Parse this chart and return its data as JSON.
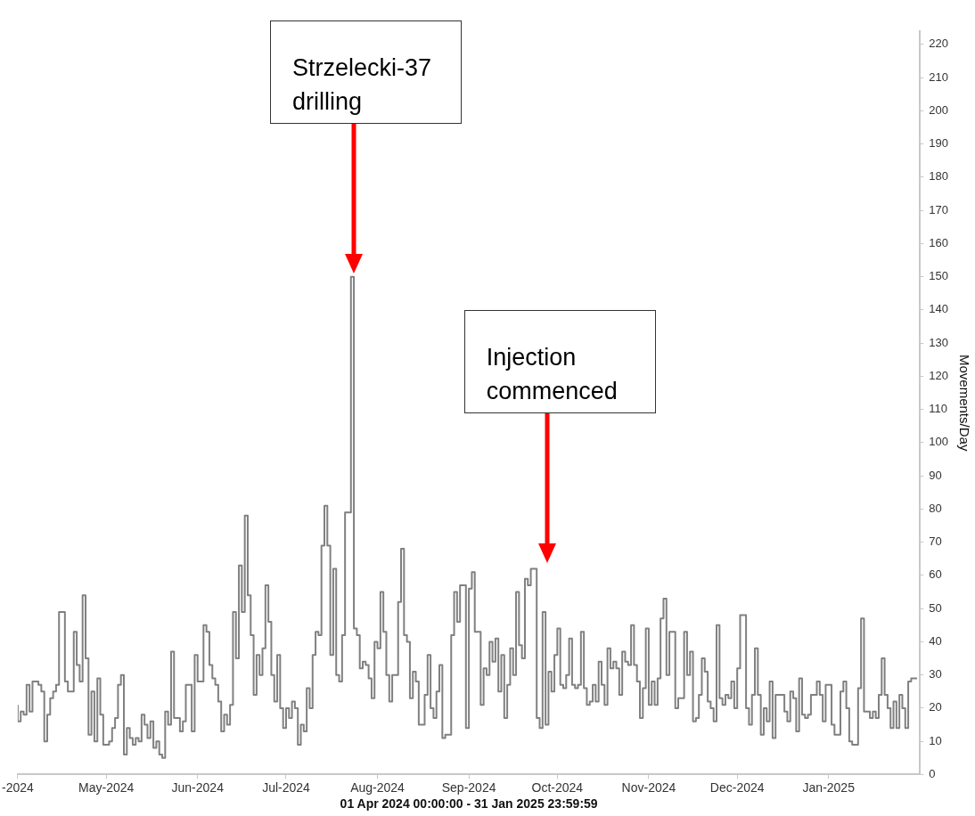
{
  "chart_data": {
    "type": "step",
    "xlabel": "01 Apr 2024 00:00:00 - 31 Jan 2025 23:59:59",
    "ylabel": "Movements/Day",
    "color": "#808080",
    "x": [
      "2024-04-01",
      "2024-04-02",
      "2024-04-03",
      "2024-04-04",
      "2024-04-05",
      "2024-04-06",
      "2024-04-07",
      "2024-04-08",
      "2024-04-09",
      "2024-04-10",
      "2024-04-11",
      "2024-04-12",
      "2024-04-13",
      "2024-04-14",
      "2024-04-15",
      "2024-04-16",
      "2024-04-17",
      "2024-04-18",
      "2024-04-19",
      "2024-04-20",
      "2024-04-21",
      "2024-04-22",
      "2024-04-23",
      "2024-04-24",
      "2024-04-25",
      "2024-04-26",
      "2024-04-27",
      "2024-04-28",
      "2024-04-29",
      "2024-04-30",
      "2024-05-01",
      "2024-05-02",
      "2024-05-03",
      "2024-05-04",
      "2024-05-05",
      "2024-05-06",
      "2024-05-07",
      "2024-05-08",
      "2024-05-09",
      "2024-05-10",
      "2024-05-11",
      "2024-05-12",
      "2024-05-13",
      "2024-05-14",
      "2024-05-15",
      "2024-05-16",
      "2024-05-17",
      "2024-05-18",
      "2024-05-19",
      "2024-05-20",
      "2024-05-21",
      "2024-05-22",
      "2024-05-23",
      "2024-05-24",
      "2024-05-25",
      "2024-05-26",
      "2024-05-27",
      "2024-05-28",
      "2024-05-29",
      "2024-05-30",
      "2024-05-31",
      "2024-06-01",
      "2024-06-02",
      "2024-06-03",
      "2024-06-04",
      "2024-06-05",
      "2024-06-06",
      "2024-06-07",
      "2024-06-08",
      "2024-06-09",
      "2024-06-10",
      "2024-06-11",
      "2024-06-12",
      "2024-06-13",
      "2024-06-14",
      "2024-06-15",
      "2024-06-16",
      "2024-06-17",
      "2024-06-18",
      "2024-06-19",
      "2024-06-20",
      "2024-06-21",
      "2024-06-22",
      "2024-06-23",
      "2024-06-24",
      "2024-06-25",
      "2024-06-26",
      "2024-06-27",
      "2024-06-28",
      "2024-06-29",
      "2024-06-30",
      "2024-07-01",
      "2024-07-02",
      "2024-07-03",
      "2024-07-04",
      "2024-07-05",
      "2024-07-06",
      "2024-07-07",
      "2024-07-08",
      "2024-07-09",
      "2024-07-10",
      "2024-07-11",
      "2024-07-12",
      "2024-07-13",
      "2024-07-14",
      "2024-07-15",
      "2024-07-16",
      "2024-07-17",
      "2024-07-18",
      "2024-07-19",
      "2024-07-20",
      "2024-07-21",
      "2024-07-22",
      "2024-07-23",
      "2024-07-24",
      "2024-07-25",
      "2024-07-26",
      "2024-07-27",
      "2024-07-28",
      "2024-07-29",
      "2024-07-30",
      "2024-07-31",
      "2024-08-01",
      "2024-08-02",
      "2024-08-03",
      "2024-08-04",
      "2024-08-05",
      "2024-08-06",
      "2024-08-07",
      "2024-08-08",
      "2024-08-09",
      "2024-08-10",
      "2024-08-11",
      "2024-08-12",
      "2024-08-13",
      "2024-08-14",
      "2024-08-15",
      "2024-08-16",
      "2024-08-17",
      "2024-08-18",
      "2024-08-19",
      "2024-08-20",
      "2024-08-21",
      "2024-08-22",
      "2024-08-23",
      "2024-08-24",
      "2024-08-25",
      "2024-08-26",
      "2024-08-27",
      "2024-08-28",
      "2024-08-29",
      "2024-08-30",
      "2024-08-31",
      "2024-09-01",
      "2024-09-02",
      "2024-09-03",
      "2024-09-04",
      "2024-09-05",
      "2024-09-06",
      "2024-09-07",
      "2024-09-08",
      "2024-09-09",
      "2024-09-10",
      "2024-09-11",
      "2024-09-12",
      "2024-09-13",
      "2024-09-14",
      "2024-09-15",
      "2024-09-16",
      "2024-09-17",
      "2024-09-18",
      "2024-09-19",
      "2024-09-20",
      "2024-09-21",
      "2024-09-22",
      "2024-09-23",
      "2024-09-24",
      "2024-09-25",
      "2024-09-26",
      "2024-09-27",
      "2024-09-28",
      "2024-09-29",
      "2024-09-30",
      "2024-10-01",
      "2024-10-02",
      "2024-10-03",
      "2024-10-04",
      "2024-10-05",
      "2024-10-06",
      "2024-10-07",
      "2024-10-08",
      "2024-10-09",
      "2024-10-10",
      "2024-10-11",
      "2024-10-12",
      "2024-10-13",
      "2024-10-14",
      "2024-10-15",
      "2024-10-16",
      "2024-10-17",
      "2024-10-18",
      "2024-10-19",
      "2024-10-20",
      "2024-10-21",
      "2024-10-22",
      "2024-10-23",
      "2024-10-24",
      "2024-10-25",
      "2024-10-26",
      "2024-10-27",
      "2024-10-28",
      "2024-10-29",
      "2024-10-30",
      "2024-10-31",
      "2024-11-01",
      "2024-11-02",
      "2024-11-03",
      "2024-11-04",
      "2024-11-05",
      "2024-11-06",
      "2024-11-07",
      "2024-11-08",
      "2024-11-09",
      "2024-11-10",
      "2024-11-11",
      "2024-11-12",
      "2024-11-13",
      "2024-11-14",
      "2024-11-15",
      "2024-11-16",
      "2024-11-17",
      "2024-11-18",
      "2024-11-19",
      "2024-11-20",
      "2024-11-21",
      "2024-11-22",
      "2024-11-23",
      "2024-11-24",
      "2024-11-25",
      "2024-11-26",
      "2024-11-27",
      "2024-11-28",
      "2024-11-29",
      "2024-11-30",
      "2024-12-01",
      "2024-12-02",
      "2024-12-03",
      "2024-12-04",
      "2024-12-05",
      "2024-12-06",
      "2024-12-07",
      "2024-12-08",
      "2024-12-09",
      "2024-12-10",
      "2024-12-11",
      "2024-12-12",
      "2024-12-13",
      "2024-12-14",
      "2024-12-15",
      "2024-12-16",
      "2024-12-17",
      "2024-12-18",
      "2024-12-19",
      "2024-12-20",
      "2024-12-21",
      "2024-12-22",
      "2024-12-23",
      "2024-12-24",
      "2024-12-25",
      "2024-12-26",
      "2024-12-27",
      "2024-12-28",
      "2024-12-29",
      "2024-12-30",
      "2024-12-31",
      "2025-01-01",
      "2025-01-02",
      "2025-01-03",
      "2025-01-04",
      "2025-01-05",
      "2025-01-06",
      "2025-01-07",
      "2025-01-08",
      "2025-01-09",
      "2025-01-10",
      "2025-01-11",
      "2025-01-12",
      "2025-01-13",
      "2025-01-14",
      "2025-01-15",
      "2025-01-16",
      "2025-01-17",
      "2025-01-18",
      "2025-01-19",
      "2025-01-20",
      "2025-01-21",
      "2025-01-22",
      "2025-01-23",
      "2025-01-24",
      "2025-01-25",
      "2025-01-26",
      "2025-01-27",
      "2025-01-28",
      "2025-01-29",
      "2025-01-30",
      "2025-01-31"
    ],
    "values": [
      21,
      16,
      19,
      18,
      27,
      19,
      28,
      28,
      27,
      25,
      10,
      18,
      23,
      25,
      27,
      49,
      49,
      28,
      25,
      25,
      43,
      33,
      28,
      54,
      35,
      12,
      25,
      10,
      29,
      18,
      9,
      9,
      10,
      14,
      17,
      27,
      30,
      6,
      14,
      11,
      9,
      11,
      10,
      18,
      15,
      11,
      16,
      8,
      10,
      6,
      5,
      19,
      15,
      37,
      17,
      17,
      13,
      16,
      27,
      27,
      13,
      36,
      28,
      28,
      45,
      43,
      33,
      29,
      27,
      22,
      13,
      18,
      15,
      21,
      49,
      35,
      63,
      49,
      78,
      54,
      42,
      24,
      36,
      30,
      38,
      57,
      46,
      30,
      22,
      36,
      20,
      14,
      20,
      17,
      22,
      20,
      9,
      15,
      13,
      26,
      20,
      36,
      43,
      42,
      69,
      81,
      69,
      36,
      62,
      30,
      28,
      42,
      79,
      79,
      150,
      44,
      42,
      32,
      34,
      33,
      29,
      23,
      40,
      38,
      55,
      43,
      30,
      22,
      30,
      30,
      52,
      68,
      42,
      40,
      23,
      31,
      28,
      15,
      15,
      24,
      36,
      20,
      17,
      25,
      33,
      11,
      12,
      12,
      42,
      55,
      46,
      57,
      57,
      14,
      56,
      61,
      43,
      43,
      21,
      32,
      30,
      40,
      34,
      41,
      25,
      36,
      17,
      27,
      38,
      30,
      55,
      39,
      35,
      59,
      57,
      62,
      62,
      17,
      14,
      49,
      15,
      31,
      25,
      36,
      44,
      27,
      26,
      30,
      41,
      27,
      26,
      27,
      43,
      26,
      21,
      22,
      27,
      22,
      34,
      27,
      21,
      38,
      32,
      34,
      32,
      24,
      37,
      34,
      33,
      45,
      33,
      28,
      17,
      26,
      44,
      21,
      28,
      21,
      29,
      47,
      53,
      30,
      43,
      43,
      20,
      23,
      23,
      43,
      30,
      37,
      16,
      17,
      24,
      35,
      31,
      22,
      20,
      16,
      45,
      23,
      21,
      24,
      23,
      28,
      20,
      32,
      48,
      48,
      20,
      15,
      24,
      38,
      24,
      12,
      20,
      16,
      28,
      11,
      24,
      24,
      24,
      19,
      16,
      25,
      23,
      13,
      29,
      18,
      17,
      18,
      24,
      24,
      28,
      24,
      16,
      27,
      27,
      15,
      12,
      12,
      25,
      28,
      20,
      10,
      9,
      9,
      26,
      47,
      19,
      19,
      17,
      19,
      17,
      24,
      35,
      24,
      20,
      14,
      22,
      14,
      24,
      20,
      14,
      28,
      29,
      29
    ],
    "xlim": [
      "2024-04-01",
      "2025-02-01"
    ],
    "xticks": [
      {
        "value": "2024-04-01",
        "label": "-2024"
      },
      {
        "value": "2024-05-01",
        "label": "May-2024"
      },
      {
        "value": "2024-06-01",
        "label": "Jun-2024"
      },
      {
        "value": "2024-07-01",
        "label": "Jul-2024"
      },
      {
        "value": "2024-08-01",
        "label": "Aug-2024"
      },
      {
        "value": "2024-09-01",
        "label": "Sep-2024"
      },
      {
        "value": "2024-10-01",
        "label": "Oct-2024"
      },
      {
        "value": "2024-11-01",
        "label": "Nov-2024"
      },
      {
        "value": "2024-12-01",
        "label": "Dec-2024"
      },
      {
        "value": "2025-01-01",
        "label": "Jan-2025"
      }
    ],
    "ylim": [
      0,
      224
    ],
    "yticks": [
      0,
      10,
      20,
      30,
      40,
      50,
      60,
      70,
      80,
      90,
      100,
      110,
      120,
      130,
      140,
      150,
      160,
      170,
      180,
      190,
      200,
      210,
      220
    ],
    "annotations": [
      "Strzelecki-37 drilling",
      "Injection commenced"
    ],
    "grid": false,
    "legend": false
  }
}
